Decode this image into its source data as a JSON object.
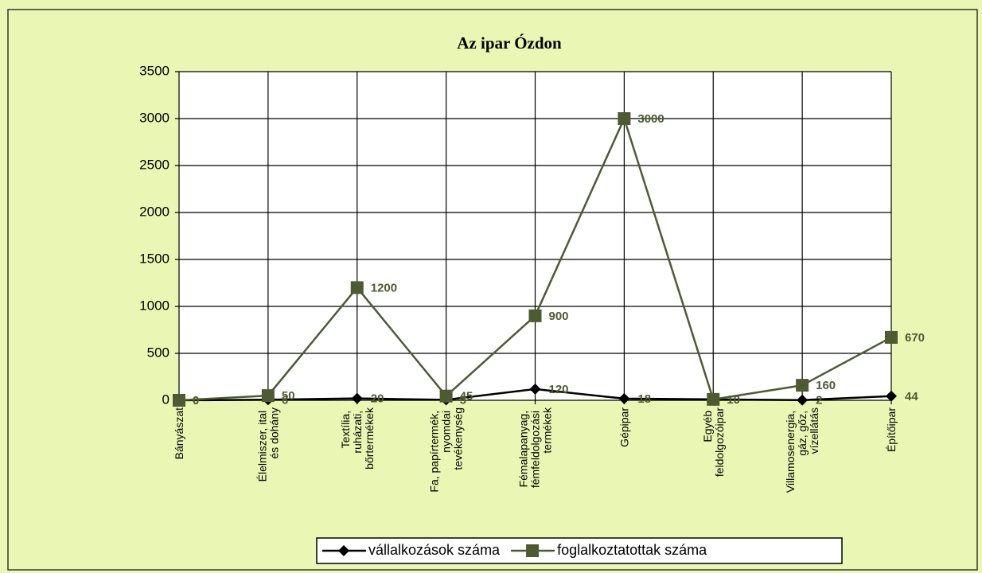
{
  "chart_data": {
    "type": "line",
    "title": "Az ipar Ózdon",
    "categories": [
      "Bányászat",
      "Élelmiszer, ital és dohány",
      "Textília, ruházati, bőrtermékek",
      "Fa, papírtermék, nyomdai tevékenység",
      "Fémalapanyag, fémfeldolgozási termékek",
      "Gépipar",
      "Egyéb feldolgozóipar",
      "Villamosenergia, gáz, gőz, vízellátás",
      "Építőipar"
    ],
    "series": [
      {
        "name": "vállalkozások száma",
        "color": "#000000",
        "marker": "diamond",
        "values": [
          0,
          6,
          20,
          5,
          120,
          18,
          10,
          2,
          44
        ]
      },
      {
        "name": "foglalkoztatottak száma",
        "color": "#4d5a33",
        "marker": "square",
        "values": [
          0,
          50,
          1200,
          45,
          900,
          3000,
          10,
          160,
          670
        ]
      }
    ],
    "ylim": [
      0,
      3500
    ],
    "yticks": [
      0,
      500,
      1000,
      1500,
      2000,
      2500,
      3000,
      3500
    ],
    "grid": true,
    "legend": "bottom"
  }
}
